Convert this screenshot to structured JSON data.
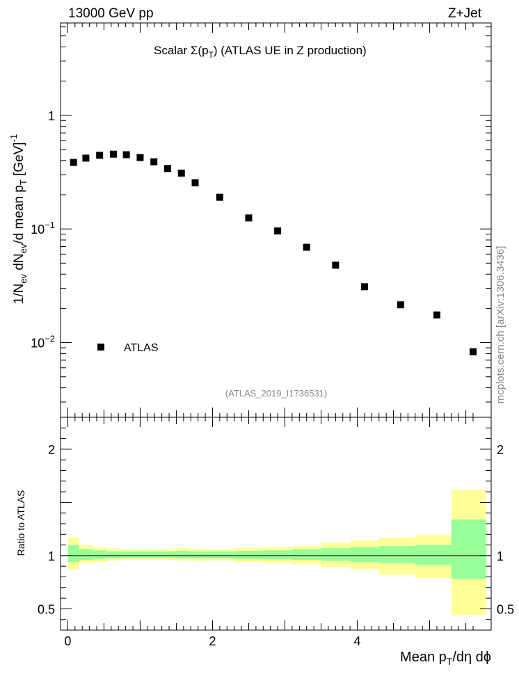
{
  "header": {
    "left": "13000 GeV pp",
    "right": "Z+Jet"
  },
  "chart_data": [
    {
      "type": "scatter",
      "title_prefix": "Scalar Σ(p",
      "title_sub": "T",
      "title_suffix": ") (ATLAS UE in Z production)",
      "ylabel": "1/N_ev dN_ev/d mean p_T [GeV]^-1",
      "yscale": "log",
      "ylim": [
        0.0022,
        6.5
      ],
      "xlim": [
        -0.1,
        5.85
      ],
      "legend": "ATLAS",
      "legend_position": "bottom-left",
      "analysis_tag": "(ATLAS_2019_I1736531)",
      "yticks": [
        {
          "value": 1,
          "base": "1",
          "exp": ""
        },
        {
          "value": 0.1,
          "base": "10",
          "exp": "−1"
        },
        {
          "value": 0.01,
          "base": "10",
          "exp": "−2"
        }
      ],
      "series": [
        {
          "name": "ATLAS",
          "x": [
            0.08,
            0.25,
            0.44,
            0.63,
            0.81,
            1.0,
            1.19,
            1.38,
            1.57,
            1.76,
            2.1,
            2.5,
            2.9,
            3.3,
            3.7,
            4.1,
            4.6,
            5.1,
            5.6
          ],
          "y": [
            0.385,
            0.42,
            0.445,
            0.455,
            0.45,
            0.425,
            0.39,
            0.34,
            0.31,
            0.255,
            0.19,
            0.125,
            0.096,
            0.069,
            0.048,
            0.031,
            0.0215,
            0.0175,
            0.0083
          ]
        }
      ]
    },
    {
      "type": "area",
      "ylabel": "Ratio to ATLAS",
      "ylim": [
        0.3,
        2.3
      ],
      "xlim": [
        -0.1,
        5.85
      ],
      "xlabel": "Mean p_T/dη dϕ",
      "yticks": [
        0.5,
        1,
        2
      ],
      "xticks": [
        0,
        2,
        4
      ],
      "bins": [
        {
          "lo": 0.0,
          "hi": 0.16,
          "g_lo": 0.94,
          "g_hi": 1.1,
          "y_lo": 0.87,
          "y_hi": 1.17
        },
        {
          "lo": 0.16,
          "hi": 0.35,
          "g_lo": 0.96,
          "g_hi": 1.06,
          "y_lo": 0.93,
          "y_hi": 1.1
        },
        {
          "lo": 0.35,
          "hi": 0.54,
          "g_lo": 0.97,
          "g_hi": 1.05,
          "y_lo": 0.94,
          "y_hi": 1.08
        },
        {
          "lo": 0.54,
          "hi": 0.72,
          "g_lo": 0.975,
          "g_hi": 1.04,
          "y_lo": 0.955,
          "y_hi": 1.07
        },
        {
          "lo": 0.72,
          "hi": 0.91,
          "g_lo": 0.98,
          "g_hi": 1.04,
          "y_lo": 0.96,
          "y_hi": 1.06
        },
        {
          "lo": 0.91,
          "hi": 1.1,
          "g_lo": 0.98,
          "g_hi": 1.04,
          "y_lo": 0.96,
          "y_hi": 1.06
        },
        {
          "lo": 1.1,
          "hi": 1.29,
          "g_lo": 0.98,
          "g_hi": 1.04,
          "y_lo": 0.96,
          "y_hi": 1.06
        },
        {
          "lo": 1.29,
          "hi": 1.48,
          "g_lo": 0.98,
          "g_hi": 1.04,
          "y_lo": 0.96,
          "y_hi": 1.06
        },
        {
          "lo": 1.48,
          "hi": 1.67,
          "g_lo": 0.975,
          "g_hi": 1.045,
          "y_lo": 0.955,
          "y_hi": 1.07
        },
        {
          "lo": 1.67,
          "hi": 1.86,
          "g_lo": 0.975,
          "g_hi": 1.04,
          "y_lo": 0.95,
          "y_hi": 1.065
        },
        {
          "lo": 1.86,
          "hi": 2.3,
          "g_lo": 0.975,
          "g_hi": 1.04,
          "y_lo": 0.955,
          "y_hi": 1.06
        },
        {
          "lo": 2.3,
          "hi": 2.7,
          "g_lo": 0.97,
          "g_hi": 1.045,
          "y_lo": 0.94,
          "y_hi": 1.07
        },
        {
          "lo": 2.7,
          "hi": 3.1,
          "g_lo": 0.965,
          "g_hi": 1.05,
          "y_lo": 0.93,
          "y_hi": 1.08
        },
        {
          "lo": 3.1,
          "hi": 3.5,
          "g_lo": 0.96,
          "g_hi": 1.06,
          "y_lo": 0.92,
          "y_hi": 1.09
        },
        {
          "lo": 3.5,
          "hi": 3.9,
          "g_lo": 0.95,
          "g_hi": 1.07,
          "y_lo": 0.89,
          "y_hi": 1.12
        },
        {
          "lo": 3.9,
          "hi": 4.3,
          "g_lo": 0.94,
          "g_hi": 1.08,
          "y_lo": 0.87,
          "y_hi": 1.14
        },
        {
          "lo": 4.3,
          "hi": 4.8,
          "g_lo": 0.93,
          "g_hi": 1.09,
          "y_lo": 0.82,
          "y_hi": 1.17
        },
        {
          "lo": 4.8,
          "hi": 5.3,
          "g_lo": 0.91,
          "g_hi": 1.1,
          "y_lo": 0.79,
          "y_hi": 1.19
        },
        {
          "lo": 5.3,
          "hi": 5.78,
          "g_lo": 0.78,
          "g_hi": 1.34,
          "y_lo": 0.44,
          "y_hi": 1.62
        }
      ]
    }
  ],
  "watermark": "mcplots.cern.ch [arXiv:1306.3436]",
  "colors": {
    "band_inner": "#99ff99",
    "band_outer": "#ffff99",
    "marker": "#000000",
    "tag": "#888888"
  }
}
